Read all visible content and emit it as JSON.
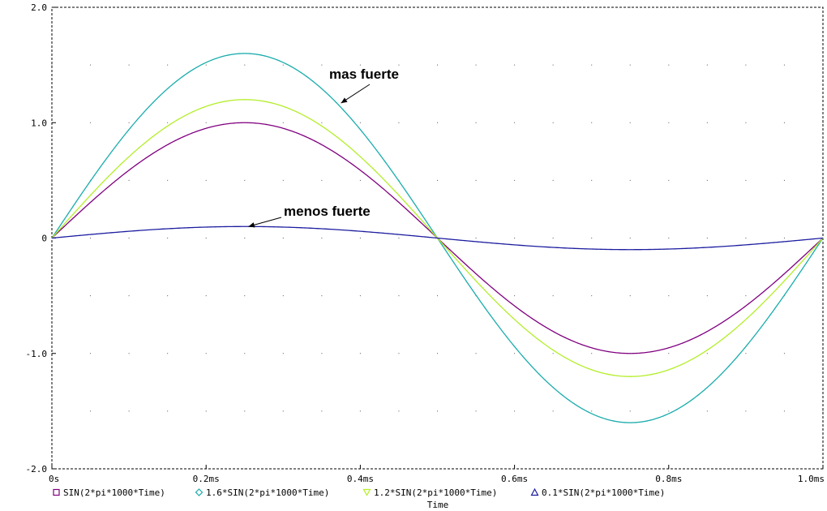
{
  "chart_data": {
    "type": "line",
    "xlabel": "Time",
    "ylabel": "",
    "xlim": [
      0,
      1.0
    ],
    "ylim": [
      -2.0,
      2.0
    ],
    "grid": true,
    "legend_position": "bottom",
    "x_ticks": [
      {
        "value": 0,
        "label": "0s"
      },
      {
        "value": 0.2,
        "label": "0.2ms"
      },
      {
        "value": 0.4,
        "label": "0.4ms"
      },
      {
        "value": 0.6,
        "label": "0.6ms"
      },
      {
        "value": 0.8,
        "label": "0.8ms"
      },
      {
        "value": 1.0,
        "label": "1.0ms"
      }
    ],
    "y_ticks": [
      {
        "value": 2.0,
        "label": "2.0"
      },
      {
        "value": 1.0,
        "label": "1.0"
      },
      {
        "value": 0,
        "label": "0"
      },
      {
        "value": -1.0,
        "label": "-1.0"
      },
      {
        "value": -2.0,
        "label": "-2.0"
      }
    ],
    "series": [
      {
        "name": "SIN(2*pi*1000*Time)",
        "amplitude": 1.0,
        "color": "#800080",
        "marker": "square"
      },
      {
        "name": "1.6*SIN(2*pi*1000*Time)",
        "amplitude": 1.6,
        "color": "#1aacac",
        "marker": "diamond"
      },
      {
        "name": "1.2*SIN(2*pi*1000*Time)",
        "amplitude": 1.2,
        "color": "#b4ee2a",
        "marker": "triangle-down"
      },
      {
        "name": "0.1*SIN(2*pi*1000*Time)",
        "amplitude": 0.1,
        "color": "#1c1ca0",
        "marker": "triangle-up"
      }
    ],
    "annotations": [
      {
        "id": "mas",
        "text": "mas fuerte",
        "target": {
          "x": 0.375,
          "y": 1.17
        },
        "series": "1.6*SIN(2*pi*1000*Time)"
      },
      {
        "id": "menos",
        "text": "menos fuerte",
        "target": {
          "x": 0.255,
          "y": 0.1
        },
        "series": "0.1*SIN(2*pi*1000*Time)"
      }
    ]
  }
}
